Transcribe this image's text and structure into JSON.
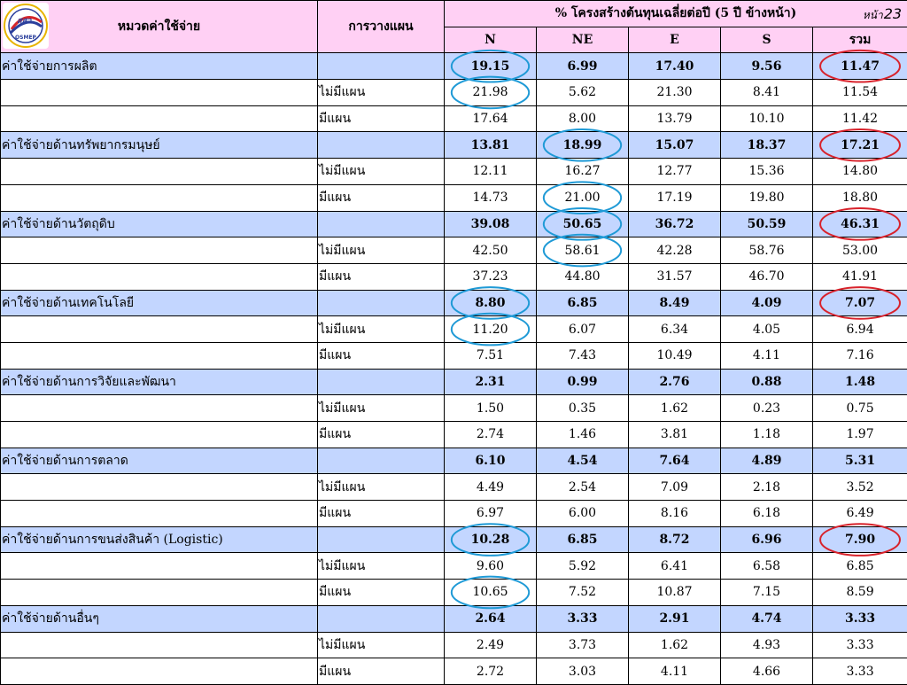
{
  "header": {
    "category_label": "หมวดค่าใช้จ่าย",
    "planning_label": "การวางแผน",
    "structure_label": "% โครงสร้างต้นทุนเฉลี่ยต่อปี (5 ปี ข้างหน้า)",
    "page_prefix": "หน้า",
    "page_number": "23",
    "columns": [
      "N",
      "NE",
      "E",
      "S",
      "รวม"
    ]
  },
  "logo": {
    "text": "สสว.",
    "subtext": "OSMEP",
    "colors": {
      "blue": "#2b3f9c",
      "red": "#d6262b",
      "gold": "#e8b400"
    }
  },
  "rows": [
    {
      "type": "category",
      "label": "ค่าใช้จ่ายการผลิต",
      "plan": "",
      "values": [
        "19.15",
        "6.99",
        "17.40",
        "9.56",
        "11.47"
      ]
    },
    {
      "type": "sub",
      "label": "",
      "plan": "ไม่มีแผน",
      "values": [
        "21.98",
        "5.62",
        "21.30",
        "8.41",
        "11.54"
      ]
    },
    {
      "type": "sub",
      "label": "",
      "plan": "มีแผน",
      "values": [
        "17.64",
        "8.00",
        "13.79",
        "10.10",
        "11.42"
      ]
    },
    {
      "type": "category",
      "label": "ค่าใช้จ่ายด้านทรัพยากรมนุษย์",
      "plan": "",
      "values": [
        "13.81",
        "18.99",
        "15.07",
        "18.37",
        "17.21"
      ]
    },
    {
      "type": "sub",
      "label": "",
      "plan": "ไม่มีแผน",
      "values": [
        "12.11",
        "16.27",
        "12.77",
        "15.36",
        "14.80"
      ]
    },
    {
      "type": "sub",
      "label": "",
      "plan": "มีแผน",
      "values": [
        "14.73",
        "21.00",
        "17.19",
        "19.80",
        "18.80"
      ]
    },
    {
      "type": "category",
      "label": "ค่าใช้จ่ายด้านวัตถุดิบ",
      "plan": "",
      "values": [
        "39.08",
        "50.65",
        "36.72",
        "50.59",
        "46.31"
      ]
    },
    {
      "type": "sub",
      "label": "",
      "plan": "ไม่มีแผน",
      "values": [
        "42.50",
        "58.61",
        "42.28",
        "58.76",
        "53.00"
      ]
    },
    {
      "type": "sub",
      "label": "",
      "plan": "มีแผน",
      "values": [
        "37.23",
        "44.80",
        "31.57",
        "46.70",
        "41.91"
      ]
    },
    {
      "type": "category",
      "label": "ค่าใช้จ่ายด้านเทคโนโลยี",
      "plan": "",
      "values": [
        "8.80",
        "6.85",
        "8.49",
        "4.09",
        "7.07"
      ]
    },
    {
      "type": "sub",
      "label": "",
      "plan": "ไม่มีแผน",
      "values": [
        "11.20",
        "6.07",
        "6.34",
        "4.05",
        "6.94"
      ]
    },
    {
      "type": "sub",
      "label": "",
      "plan": "มีแผน",
      "values": [
        "7.51",
        "7.43",
        "10.49",
        "4.11",
        "7.16"
      ]
    },
    {
      "type": "category",
      "label": "ค่าใช้จ่ายด้านการวิจัยและพัฒนา",
      "plan": "",
      "values": [
        "2.31",
        "0.99",
        "2.76",
        "0.88",
        "1.48"
      ]
    },
    {
      "type": "sub",
      "label": "",
      "plan": "ไม่มีแผน",
      "values": [
        "1.50",
        "0.35",
        "1.62",
        "0.23",
        "0.75"
      ]
    },
    {
      "type": "sub",
      "label": "",
      "plan": "มีแผน",
      "values": [
        "2.74",
        "1.46",
        "3.81",
        "1.18",
        "1.97"
      ]
    },
    {
      "type": "category",
      "label": "ค่าใช้จ่ายด้านการตลาด",
      "plan": "",
      "values": [
        "6.10",
        "4.54",
        "7.64",
        "4.89",
        "5.31"
      ]
    },
    {
      "type": "sub",
      "label": "",
      "plan": "ไม่มีแผน",
      "values": [
        "4.49",
        "2.54",
        "7.09",
        "2.18",
        "3.52"
      ]
    },
    {
      "type": "sub",
      "label": "",
      "plan": "มีแผน",
      "values": [
        "6.97",
        "6.00",
        "8.16",
        "6.18",
        "6.49"
      ]
    },
    {
      "type": "category",
      "label": "ค่าใช้จ่ายด้านการขนส่งสินค้า (Logistic)",
      "plan": "",
      "values": [
        "10.28",
        "6.85",
        "8.72",
        "6.96",
        "7.90"
      ]
    },
    {
      "type": "sub",
      "label": "",
      "plan": "ไม่มีแผน",
      "values": [
        "9.60",
        "5.92",
        "6.41",
        "6.58",
        "6.85"
      ]
    },
    {
      "type": "sub",
      "label": "",
      "plan": "มีแผน",
      "values": [
        "10.65",
        "7.52",
        "10.87",
        "7.15",
        "8.59"
      ]
    },
    {
      "type": "category",
      "label": "ค่าใช้จ่ายด้านอื่นๆ",
      "plan": "",
      "values": [
        "2.64",
        "3.33",
        "2.91",
        "4.74",
        "3.33"
      ]
    },
    {
      "type": "sub",
      "label": "",
      "plan": "ไม่มีแผน",
      "values": [
        "2.49",
        "3.73",
        "1.62",
        "4.93",
        "3.33"
      ]
    },
    {
      "type": "sub",
      "label": "",
      "plan": "มีแผน",
      "values": [
        "2.72",
        "3.03",
        "4.11",
        "4.66",
        "3.33"
      ]
    }
  ],
  "highlights": {
    "blue_color": "#1f9ad6",
    "red_color": "#d8222b",
    "marks": [
      {
        "row": 0,
        "col": 0,
        "color": "blue"
      },
      {
        "row": 1,
        "col": 0,
        "color": "blue"
      },
      {
        "row": 0,
        "col": 4,
        "color": "red"
      },
      {
        "row": 3,
        "col": 1,
        "color": "blue"
      },
      {
        "row": 5,
        "col": 1,
        "color": "blue"
      },
      {
        "row": 3,
        "col": 4,
        "color": "red"
      },
      {
        "row": 6,
        "col": 1,
        "color": "blue"
      },
      {
        "row": 7,
        "col": 1,
        "color": "blue"
      },
      {
        "row": 6,
        "col": 4,
        "color": "red"
      },
      {
        "row": 9,
        "col": 0,
        "color": "blue"
      },
      {
        "row": 10,
        "col": 0,
        "color": "blue"
      },
      {
        "row": 9,
        "col": 4,
        "color": "red"
      },
      {
        "row": 18,
        "col": 0,
        "color": "blue"
      },
      {
        "row": 20,
        "col": 0,
        "color": "blue"
      },
      {
        "row": 18,
        "col": 4,
        "color": "red"
      }
    ]
  }
}
